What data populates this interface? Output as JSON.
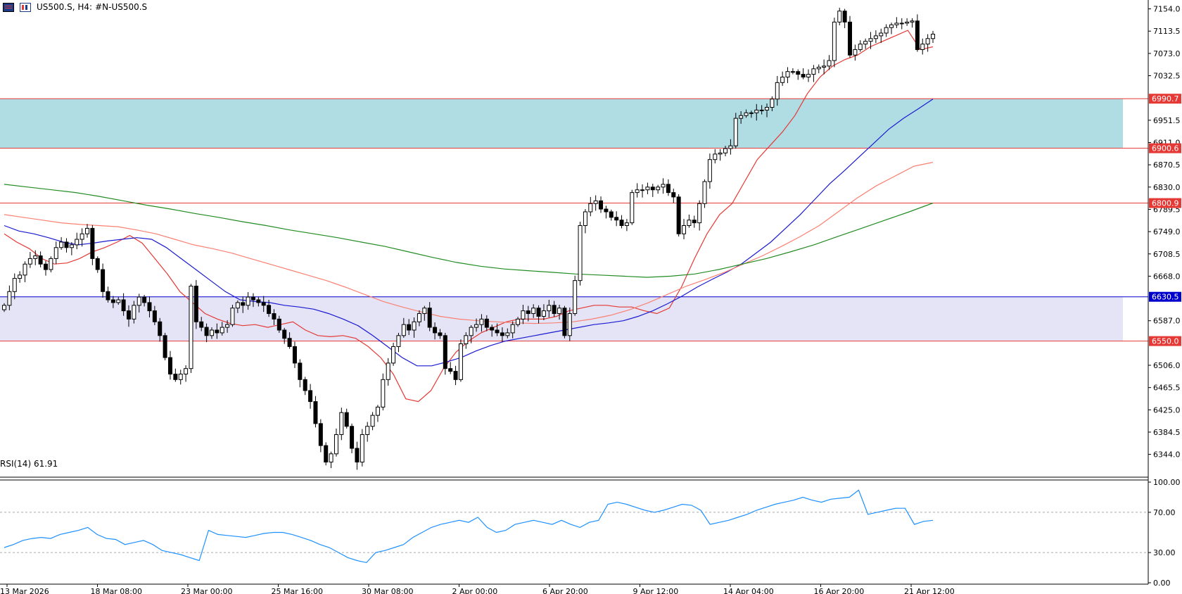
{
  "header": {
    "symbol_label": "US500.S, H4:",
    "description": "#N-US500.S",
    "icons": [
      "chart-grid-icon",
      "bar-chart-icon"
    ]
  },
  "chart_data": [
    {
      "type": "candlestick",
      "symbol": "US500.S",
      "timeframe": "H4",
      "ylim": [
        6300,
        7165
      ],
      "price_ticks": [
        "7154.0",
        "7113.5",
        "7073.0",
        "7032.5",
        "6951.5",
        "6911.0",
        "6870.5",
        "6830.0",
        "6789.5",
        "6749.0",
        "6708.5",
        "6668.0",
        "6587.0",
        "6506.0",
        "6465.5",
        "6425.0",
        "6384.5",
        "6344.0"
      ],
      "time_ticks": [
        "13 Mar 2026",
        "18 Mar 08:00",
        "23 Mar 00:00",
        "25 Mar 16:00",
        "30 Mar 08:00",
        "2 Apr 00:00",
        "6 Apr 20:00",
        "9 Apr 12:00",
        "14 Apr 04:00",
        "16 Apr 20:00",
        "21 Apr 12:00"
      ],
      "horizontal_levels": [
        {
          "label": "6990.7",
          "value": 6990.7,
          "color": "#e53935"
        },
        {
          "label": "6900.6",
          "value": 6900.6,
          "color": "#e53935"
        },
        {
          "label": "6800.9",
          "value": 6800.9,
          "color": "#e53935"
        },
        {
          "label": "6630.5",
          "value": 6630.5,
          "color": "#0000cc"
        },
        {
          "label": "6550.0",
          "value": 6550.0,
          "color": "#e53935"
        }
      ],
      "zones": [
        {
          "from": 6900.6,
          "to": 6990.7,
          "color": "#b0dde4"
        },
        {
          "from": 6550.0,
          "to": 6630.5,
          "color": "#e4e4f6"
        }
      ],
      "close": [
        6615,
        6640,
        6664,
        6670,
        6690,
        6700,
        6705,
        6690,
        6680,
        6700,
        6720,
        6730,
        6720,
        6725,
        6735,
        6745,
        6755,
        6700,
        6680,
        6640,
        6625,
        6620,
        6625,
        6605,
        6590,
        6615,
        6630,
        6620,
        6605,
        6585,
        6560,
        6520,
        6490,
        6480,
        6490,
        6500,
        6650,
        6585,
        6575,
        6560,
        6570,
        6565,
        6575,
        6580,
        6610,
        6620,
        6615,
        6630,
        6625,
        6620,
        6615,
        6600,
        6590,
        6570,
        6555,
        6540,
        6510,
        6480,
        6460,
        6440,
        6400,
        6360,
        6330,
        6345,
        6380,
        6420,
        6395,
        6355,
        6330,
        6380,
        6395,
        6415,
        6430,
        6480,
        6510,
        6540,
        6560,
        6580,
        6570,
        6585,
        6600,
        6610,
        6575,
        6565,
        6560,
        6500,
        6495,
        6480,
        6545,
        6560,
        6575,
        6580,
        6590,
        6575,
        6570,
        6565,
        6560,
        6565,
        6580,
        6590,
        6605,
        6600,
        6610,
        6595,
        6605,
        6615,
        6600,
        6610,
        6560,
        6600,
        6660,
        6760,
        6785,
        6800,
        6805,
        6790,
        6785,
        6775,
        6770,
        6760,
        6765,
        6820,
        6825,
        6825,
        6830,
        6825,
        6830,
        6835,
        6820,
        6812,
        6745,
        6760,
        6770,
        6765,
        6800,
        6840,
        6880,
        6890,
        6892,
        6900,
        6905,
        6955,
        6960,
        6965,
        6965,
        6970,
        6970,
        6975,
        6990,
        7020,
        7030,
        7040,
        7040,
        7035,
        7030,
        7035,
        7045,
        7048,
        7050,
        7060,
        7130,
        7150,
        7130,
        7070,
        7080,
        7090,
        7095,
        7100,
        7105,
        7110,
        7120,
        7125,
        7128,
        7128,
        7130,
        7132,
        7080,
        7090,
        7100,
        7108
      ],
      "ma_series": [
        {
          "color": "#e53935",
          "name": "",
          "values": [
            6745,
            6730,
            6718,
            6700,
            6690,
            6692,
            6700,
            6712,
            6720,
            6730,
            6742,
            6728,
            6700,
            6672,
            6640,
            6620,
            6600,
            6590,
            6582,
            6578,
            6580,
            6575,
            6580,
            6585,
            6570,
            6560,
            6558,
            6560,
            6555,
            6540,
            6520,
            6490,
            6445,
            6440,
            6460,
            6500,
            6530,
            6550,
            6565,
            6575,
            6585,
            6590,
            6590,
            6590,
            6595,
            6605,
            6610,
            6615,
            6615,
            6612,
            6612,
            6605,
            6600,
            6610,
            6650,
            6700,
            6745,
            6780,
            6800,
            6840,
            6880,
            6905,
            6930,
            6960,
            7000,
            7030,
            7050,
            7062,
            7070,
            7085,
            7095,
            7105,
            7115,
            7080,
            7085
          ]
        },
        {
          "color": "#1a1ad1",
          "name": "",
          "values": [
            6760,
            6750,
            6745,
            6738,
            6730,
            6725,
            6728,
            6732,
            6735,
            6738,
            6735,
            6720,
            6700,
            6680,
            6660,
            6640,
            6625,
            6622,
            6620,
            6615,
            6612,
            6608,
            6600,
            6590,
            6578,
            6560,
            6540,
            6520,
            6505,
            6505,
            6512,
            6520,
            6532,
            6542,
            6550,
            6555,
            6560,
            6565,
            6570,
            6575,
            6580,
            6583,
            6587,
            6595,
            6605,
            6618,
            6632,
            6648,
            6662,
            6675,
            6690,
            6710,
            6730,
            6755,
            6780,
            6808,
            6836,
            6860,
            6885,
            6910,
            6935,
            6955,
            6972,
            6990
          ]
        },
        {
          "color": "#fa8072",
          "name": "",
          "values": [
            6780,
            6775,
            6770,
            6765,
            6762,
            6760,
            6758,
            6752,
            6745,
            6735,
            6725,
            6718,
            6710,
            6700,
            6690,
            6680,
            6670,
            6660,
            6648,
            6635,
            6622,
            6612,
            6603,
            6595,
            6590,
            6587,
            6585,
            6583,
            6582,
            6583,
            6585,
            6590,
            6597,
            6607,
            6620,
            6635,
            6650,
            6662,
            6675,
            6690,
            6705,
            6722,
            6740,
            6760,
            6785,
            6810,
            6832,
            6850,
            6868,
            6875
          ]
        },
        {
          "color": "#228b22",
          "name": "",
          "values": [
            6835,
            6830,
            6825,
            6820,
            6813,
            6805,
            6797,
            6790,
            6782,
            6775,
            6767,
            6760,
            6752,
            6745,
            6738,
            6730,
            6722,
            6712,
            6702,
            6693,
            6686,
            6681,
            6678,
            6675,
            6672,
            6670,
            6668,
            6666,
            6668,
            6672,
            6680,
            6690,
            6700,
            6712,
            6725,
            6740,
            6755,
            6770,
            6785,
            6801
          ]
        }
      ]
    },
    {
      "type": "line",
      "title": "RSI(14) 61.91",
      "ylim": [
        0,
        100
      ],
      "ticks": [
        "100.00",
        "70.00",
        "30.00",
        "0.00"
      ],
      "levels": [
        70,
        30
      ],
      "series": [
        {
          "color": "#1e90ff",
          "values": [
            35,
            38,
            42,
            44,
            45,
            44,
            48,
            50,
            52,
            55,
            48,
            44,
            43,
            38,
            40,
            42,
            38,
            32,
            30,
            28,
            25,
            22,
            52,
            48,
            47,
            46,
            45,
            47,
            49,
            50,
            50,
            48,
            45,
            42,
            38,
            35,
            30,
            25,
            22,
            20,
            30,
            32,
            35,
            38,
            45,
            50,
            55,
            58,
            60,
            62,
            60,
            65,
            55,
            50,
            52,
            58,
            60,
            62,
            60,
            58,
            62,
            58,
            55,
            60,
            62,
            78,
            80,
            78,
            75,
            72,
            70,
            72,
            75,
            78,
            77,
            72,
            58,
            60,
            62,
            65,
            68,
            72,
            75,
            78,
            80,
            82,
            85,
            82,
            80,
            83,
            84,
            85,
            92,
            68,
            70,
            72,
            74,
            74,
            58,
            61,
            62
          ]
        }
      ]
    }
  ],
  "colors": {
    "bull_candle": "#ffffff",
    "bear_candle": "#000000",
    "level_red": "#e53935",
    "level_blue": "#0000cc",
    "grid_axis": "#000000"
  }
}
